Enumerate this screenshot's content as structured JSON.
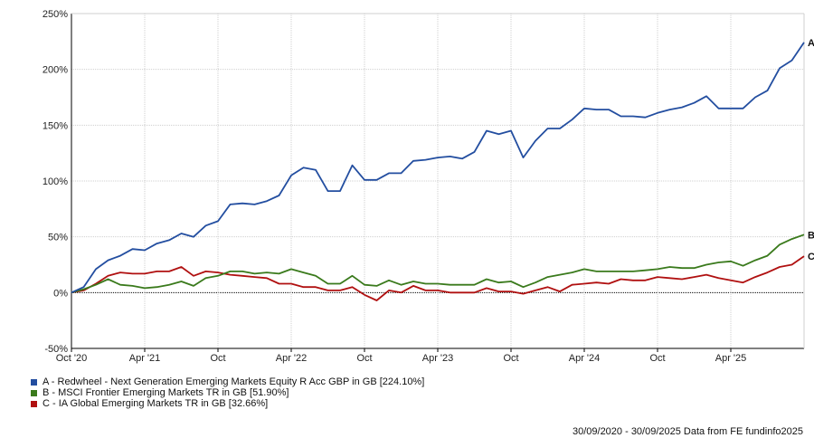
{
  "chart_data": {
    "type": "line",
    "y_unit_suffix": "%",
    "ylim": [
      -50,
      250
    ],
    "yticks": [
      -50,
      0,
      50,
      100,
      150,
      200,
      250
    ],
    "x_domain": [
      0,
      60
    ],
    "xticks": [
      {
        "month": 0,
        "label": "Oct '20"
      },
      {
        "month": 6,
        "label": "Apr '21"
      },
      {
        "month": 12,
        "label": "Oct"
      },
      {
        "month": 18,
        "label": "Apr '22"
      },
      {
        "month": 24,
        "label": "Oct"
      },
      {
        "month": 30,
        "label": "Apr '23"
      },
      {
        "month": 36,
        "label": "Oct"
      },
      {
        "month": 42,
        "label": "Apr '24"
      },
      {
        "month": 48,
        "label": "Oct"
      },
      {
        "month": 54,
        "label": "Apr '25"
      }
    ],
    "grid": true,
    "legend_position": "bottom-left",
    "series": [
      {
        "name": "A - Redwheel - Next Generation Emerging Markets Equity R Acc GBP in GB [224.10%]",
        "end_label": "A",
        "color": "#234ea0",
        "values": [
          0,
          5,
          21,
          29,
          33,
          39,
          38,
          44,
          47,
          53,
          50,
          60,
          64,
          79,
          80,
          79,
          82,
          87,
          105,
          112,
          110,
          91,
          91,
          114,
          101,
          101,
          107,
          107,
          118,
          119,
          121,
          122,
          120,
          126,
          145,
          142,
          145,
          121,
          136,
          147,
          147,
          155,
          165,
          164,
          164,
          158,
          158,
          157,
          161,
          164,
          166,
          170,
          176,
          165,
          165,
          165,
          175,
          181,
          201,
          208,
          224.1
        ]
      },
      {
        "name": "B - MSCI Frontier Emerging Markets TR in GB [51.90%]",
        "end_label": "B",
        "color": "#3a7a1c",
        "values": [
          0,
          3,
          7,
          12,
          7,
          6,
          4,
          5,
          7,
          10,
          6,
          13,
          15,
          19,
          19,
          17,
          18,
          17,
          21,
          18,
          15,
          8,
          8,
          15,
          7,
          6,
          11,
          7,
          10,
          8,
          8,
          7,
          7,
          7,
          12,
          9,
          10,
          5,
          9,
          14,
          16,
          18,
          21,
          19,
          19,
          19,
          19,
          20,
          21,
          23,
          22,
          22,
          25,
          27,
          28,
          24,
          29,
          33,
          43,
          48,
          51.9
        ]
      },
      {
        "name": "C - IA Global Emerging Markets TR in GB [32.66%]",
        "end_label": "C",
        "color": "#b01010",
        "values": [
          0,
          2,
          8,
          15,
          18,
          17,
          17,
          19,
          19,
          23,
          15,
          19,
          18,
          16,
          15,
          14,
          13,
          8,
          8,
          5,
          5,
          2,
          2,
          5,
          -2,
          -7,
          2,
          0,
          6,
          2,
          2,
          0,
          0,
          0,
          4,
          1,
          1,
          -1,
          2,
          5,
          1,
          7,
          8,
          9,
          8,
          12,
          11,
          11,
          14,
          13,
          12,
          14,
          16,
          13,
          11,
          9,
          14,
          18,
          23,
          25,
          32.66
        ]
      }
    ]
  },
  "footer": {
    "text": "30/09/2020 - 30/09/2025 Data from FE fundinfo2025"
  }
}
